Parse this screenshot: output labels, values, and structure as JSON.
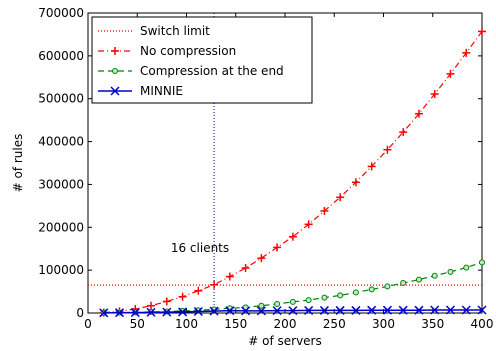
{
  "chart_data": {
    "type": "line",
    "xlabel": "# of servers",
    "ylabel": "# of rules",
    "xlim": [
      0,
      400
    ],
    "ylim": [
      0,
      700000
    ],
    "x_ticks": [
      0,
      50,
      100,
      150,
      200,
      250,
      300,
      350,
      400
    ],
    "y_ticks": [
      0,
      100000,
      200000,
      300000,
      400000,
      500000,
      600000,
      700000
    ],
    "x_tick_labels": [
      "0",
      "50",
      "100",
      "150",
      "200",
      "250",
      "300",
      "350",
      "400"
    ],
    "y_tick_labels": [
      "0",
      "100000",
      "200000",
      "300000",
      "400000",
      "500000",
      "600000",
      "700000"
    ],
    "grid": false,
    "legend_position": "top-left",
    "switch_limit": 65000,
    "clients_line_x": 128,
    "annotation": "16 clients",
    "series": [
      {
        "name": "Switch limit",
        "color": "#ff0000",
        "style": "dotted",
        "marker": "none",
        "x": [
          0,
          400
        ],
        "values": [
          65000,
          65000
        ]
      },
      {
        "name": "No compression",
        "color": "#ff0000",
        "style": "dashdot",
        "marker": "plus",
        "x": [
          16,
          32,
          48,
          64,
          80,
          96,
          112,
          128,
          144,
          160,
          176,
          192,
          208,
          224,
          240,
          256,
          272,
          288,
          304,
          320,
          336,
          352,
          368,
          384,
          400
        ],
        "values": [
          1000,
          4000,
          9500,
          17000,
          27000,
          38000,
          52000,
          66000,
          85000,
          105000,
          128000,
          153000,
          178000,
          207000,
          238000,
          270000,
          305000,
          342000,
          381000,
          422000,
          465000,
          511000,
          558000,
          607000,
          657000
        ]
      },
      {
        "name": "Compression at the end",
        "color": "#008000",
        "style": "dashed",
        "marker": "circle",
        "x": [
          16,
          32,
          48,
          64,
          80,
          96,
          112,
          128,
          144,
          160,
          176,
          192,
          208,
          224,
          240,
          256,
          272,
          288,
          304,
          320,
          336,
          352,
          368,
          384,
          400
        ],
        "values": [
          300,
          800,
          1500,
          2500,
          3500,
          5000,
          6500,
          8500,
          11000,
          13000,
          17000,
          21000,
          26000,
          30000,
          36000,
          41000,
          48000,
          55000,
          62000,
          70000,
          78000,
          87000,
          96000,
          106000,
          118000
        ]
      },
      {
        "name": "MINNIE",
        "color": "#0000cc",
        "style": "solid",
        "marker": "x",
        "x": [
          16,
          32,
          48,
          64,
          80,
          96,
          112,
          128,
          144,
          160,
          176,
          192,
          208,
          224,
          240,
          256,
          272,
          288,
          304,
          320,
          336,
          352,
          368,
          384,
          400
        ],
        "values": [
          400,
          700,
          1000,
          1500,
          2000,
          2500,
          3500,
          4500,
          5500,
          5000,
          5000,
          5500,
          5500,
          6000,
          6000,
          6000,
          6000,
          6500,
          6500,
          6500,
          6500,
          7000,
          7000,
          7000,
          7000
        ]
      }
    ]
  }
}
